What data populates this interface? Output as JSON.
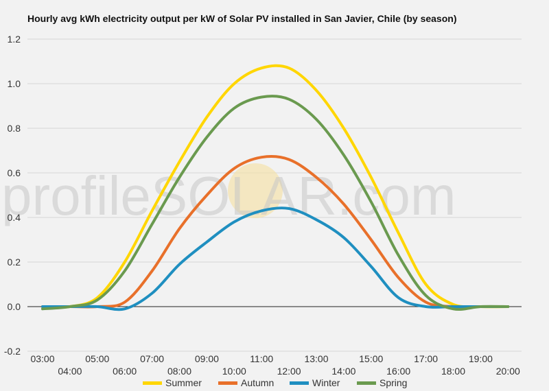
{
  "title": "Hourly avg kWh electricity output per kW of Solar PV installed in San Javier, Chile (by season)",
  "watermark": "profileSOLAR.com",
  "chart_data": {
    "type": "line",
    "title": "Hourly avg kWh electricity output per kW of Solar PV installed in San Javier, Chile (by season)",
    "xlabel": "",
    "ylabel": "",
    "ylim": [
      -0.2,
      1.2
    ],
    "yticks": [
      "1.2",
      "1.0",
      "0.8",
      "0.6",
      "0.4",
      "0.2",
      "0.0",
      "-0.2"
    ],
    "ytick_values": [
      1.2,
      1.0,
      0.8,
      0.6,
      0.4,
      0.2,
      0.0,
      -0.2
    ],
    "x": [
      "03:00",
      "04:00",
      "05:00",
      "06:00",
      "07:00",
      "08:00",
      "09:00",
      "10:00",
      "11:00",
      "12:00",
      "13:00",
      "14:00",
      "15:00",
      "16:00",
      "17:00",
      "18:00",
      "19:00",
      "20:00"
    ],
    "grid": true,
    "legend": "bottom",
    "series": [
      {
        "name": "Summer",
        "color": "#ffd600",
        "values": [
          0,
          0,
          0.04,
          0.2,
          0.43,
          0.65,
          0.85,
          1.0,
          1.07,
          1.07,
          0.97,
          0.8,
          0.58,
          0.33,
          0.1,
          0.01,
          0,
          0
        ]
      },
      {
        "name": "Autumn",
        "color": "#e8702a",
        "values": [
          0,
          0,
          0,
          0.02,
          0.16,
          0.35,
          0.5,
          0.62,
          0.67,
          0.66,
          0.58,
          0.46,
          0.3,
          0.13,
          0.02,
          0,
          0,
          0
        ]
      },
      {
        "name": "Winter",
        "color": "#1f8fc0",
        "values": [
          0,
          0,
          0,
          -0.01,
          0.06,
          0.19,
          0.29,
          0.38,
          0.43,
          0.44,
          0.39,
          0.31,
          0.18,
          0.04,
          0,
          0,
          0,
          0
        ]
      },
      {
        "name": "Spring",
        "color": "#6a9a4f",
        "values": [
          -0.01,
          0,
          0.03,
          0.16,
          0.37,
          0.58,
          0.76,
          0.89,
          0.94,
          0.93,
          0.84,
          0.68,
          0.47,
          0.23,
          0.05,
          -0.01,
          0,
          0
        ]
      }
    ]
  }
}
